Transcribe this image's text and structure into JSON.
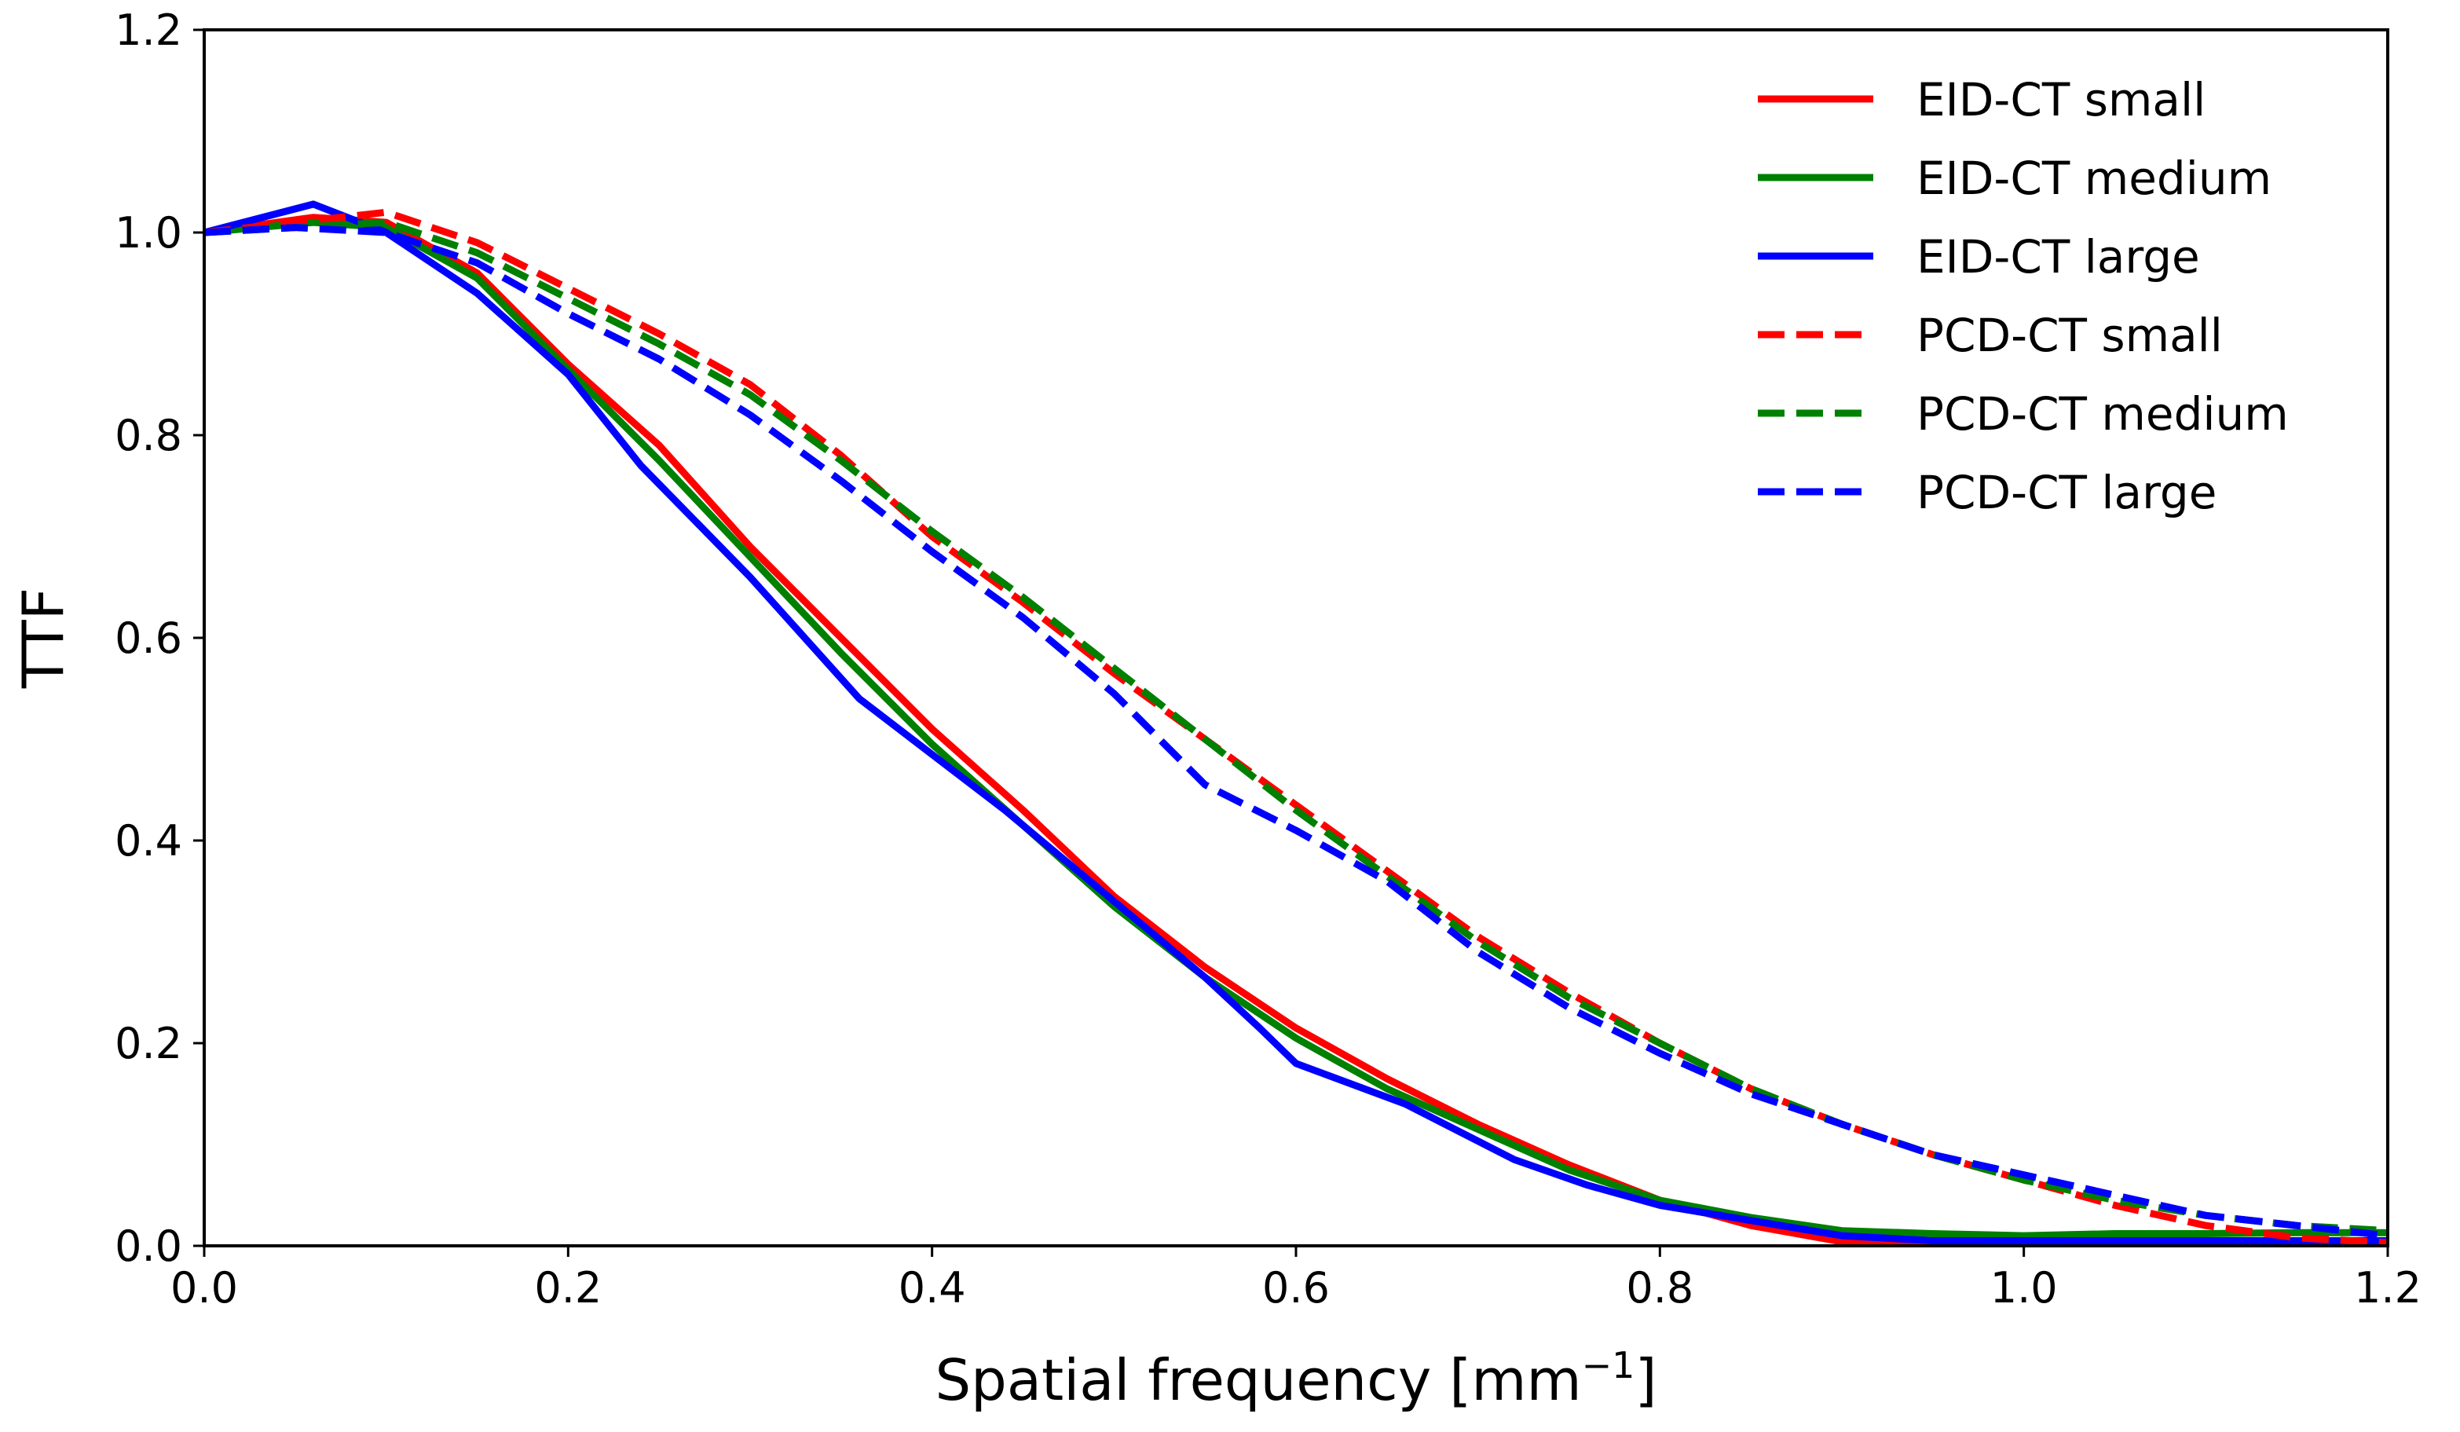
{
  "chart_data": {
    "type": "line",
    "title": "",
    "xlabel": "Spatial frequency [mm",
    "xlabel_sup": "−1",
    "xlabel_suffix": "]",
    "ylabel": "TTF",
    "xlim": [
      0.0,
      1.2
    ],
    "ylim": [
      0.0,
      1.2
    ],
    "xticks": [
      "0.0",
      "0.2",
      "0.4",
      "0.6",
      "0.8",
      "1.0",
      "1.2"
    ],
    "yticks": [
      "0.0",
      "0.2",
      "0.4",
      "0.6",
      "0.8",
      "1.0",
      "1.2"
    ],
    "grid": false,
    "legend_position": "top-right",
    "series": [
      {
        "name": "EID-CT small",
        "color": "#ff0000",
        "style": "solid",
        "x": [
          0,
          0.06,
          0.1,
          0.15,
          0.2,
          0.25,
          0.3,
          0.35,
          0.4,
          0.45,
          0.5,
          0.55,
          0.6,
          0.65,
          0.7,
          0.75,
          0.8,
          0.85,
          0.9,
          0.95,
          1.0,
          1.05,
          1.1,
          1.15,
          1.2
        ],
        "y": [
          1.0,
          1.015,
          1.01,
          0.96,
          0.87,
          0.79,
          0.69,
          0.6,
          0.51,
          0.43,
          0.345,
          0.275,
          0.215,
          0.165,
          0.12,
          0.08,
          0.045,
          0.02,
          0.004,
          0.002,
          0.003,
          0.004,
          0.003,
          0.003,
          0.003
        ]
      },
      {
        "name": "EID-CT medium",
        "color": "#008000",
        "style": "solid",
        "x": [
          0,
          0.06,
          0.1,
          0.15,
          0.2,
          0.25,
          0.3,
          0.35,
          0.4,
          0.45,
          0.5,
          0.55,
          0.6,
          0.65,
          0.7,
          0.75,
          0.8,
          0.85,
          0.9,
          0.95,
          1.0,
          1.05,
          1.1,
          1.15,
          1.2
        ],
        "y": [
          1.0,
          1.01,
          1.005,
          0.955,
          0.865,
          0.775,
          0.68,
          0.585,
          0.495,
          0.415,
          0.335,
          0.265,
          0.205,
          0.155,
          0.115,
          0.075,
          0.045,
          0.028,
          0.015,
          0.012,
          0.01,
          0.012,
          0.012,
          0.013,
          0.013
        ]
      },
      {
        "name": "EID-CT large",
        "color": "#0000ff",
        "style": "solid",
        "x": [
          0,
          0.06,
          0.1,
          0.15,
          0.2,
          0.24,
          0.3,
          0.36,
          0.4,
          0.44,
          0.48,
          0.52,
          0.55,
          0.58,
          0.6,
          0.66,
          0.72,
          0.76,
          0.8,
          0.85,
          0.9,
          0.95,
          1.0,
          1.05,
          1.1,
          1.15,
          1.2
        ],
        "y": [
          1.0,
          1.028,
          1.0,
          0.94,
          0.86,
          0.77,
          0.66,
          0.54,
          0.485,
          0.43,
          0.37,
          0.31,
          0.265,
          0.215,
          0.18,
          0.14,
          0.085,
          0.06,
          0.04,
          0.025,
          0.01,
          0.005,
          0.005,
          0.005,
          0.005,
          0.005,
          0.005
        ]
      },
      {
        "name": "PCD-CT small",
        "color": "#ff0000",
        "style": "dashed",
        "x": [
          0,
          0.05,
          0.1,
          0.15,
          0.2,
          0.25,
          0.3,
          0.35,
          0.4,
          0.45,
          0.5,
          0.55,
          0.6,
          0.65,
          0.7,
          0.75,
          0.8,
          0.85,
          0.9,
          0.95,
          1.0,
          1.05,
          1.1,
          1.15,
          1.2
        ],
        "y": [
          1.0,
          1.01,
          1.02,
          0.99,
          0.945,
          0.9,
          0.85,
          0.78,
          0.7,
          0.635,
          0.565,
          0.5,
          0.435,
          0.37,
          0.305,
          0.25,
          0.2,
          0.155,
          0.12,
          0.09,
          0.065,
          0.04,
          0.02,
          0.008,
          0.003
        ]
      },
      {
        "name": "PCD-CT medium",
        "color": "#008000",
        "style": "dashed",
        "x": [
          0,
          0.05,
          0.1,
          0.15,
          0.2,
          0.25,
          0.3,
          0.35,
          0.4,
          0.45,
          0.5,
          0.55,
          0.6,
          0.65,
          0.7,
          0.75,
          0.8,
          0.85,
          0.9,
          0.95,
          1.0,
          1.05,
          1.1,
          1.15,
          1.2
        ],
        "y": [
          1.0,
          1.005,
          1.01,
          0.98,
          0.935,
          0.89,
          0.84,
          0.775,
          0.705,
          0.64,
          0.57,
          0.5,
          0.43,
          0.365,
          0.3,
          0.245,
          0.2,
          0.155,
          0.12,
          0.09,
          0.065,
          0.045,
          0.03,
          0.02,
          0.015
        ]
      },
      {
        "name": "PCD-CT large",
        "color": "#0000ff",
        "style": "dashed",
        "x": [
          0,
          0.05,
          0.1,
          0.15,
          0.2,
          0.25,
          0.3,
          0.35,
          0.4,
          0.45,
          0.5,
          0.55,
          0.6,
          0.65,
          0.7,
          0.75,
          0.8,
          0.85,
          0.9,
          0.95,
          1.0,
          1.05,
          1.1,
          1.15,
          1.2
        ],
        "y": [
          1.0,
          1.005,
          1.0,
          0.97,
          0.92,
          0.875,
          0.82,
          0.755,
          0.685,
          0.62,
          0.545,
          0.455,
          0.41,
          0.36,
          0.29,
          0.235,
          0.19,
          0.15,
          0.12,
          0.09,
          0.07,
          0.05,
          0.03,
          0.02,
          0.01
        ]
      }
    ]
  }
}
